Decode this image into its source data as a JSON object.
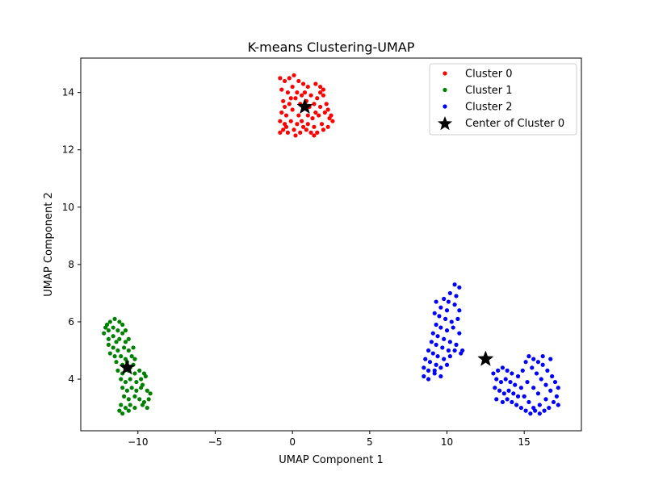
{
  "chart_data": {
    "type": "scatter",
    "title": "K-means Clustering-UMAP",
    "xlabel": "UMAP Component 1",
    "ylabel": "UMAP Component 2",
    "xlim": [
      -13.7,
      18.7
    ],
    "ylim": [
      2.2,
      15.2
    ],
    "xticks": [
      -10,
      -5,
      0,
      5,
      10,
      15
    ],
    "yticks": [
      4,
      6,
      8,
      10,
      12,
      14
    ],
    "grid": false,
    "legend_position": "top-right",
    "legend": [
      {
        "label": "Cluster 0",
        "color": "#ff0000",
        "marker": "point"
      },
      {
        "label": "Cluster 1",
        "color": "#008000",
        "marker": "point"
      },
      {
        "label": "Cluster 2",
        "color": "#0000ff",
        "marker": "point"
      },
      {
        "label": "Center of Cluster 0",
        "color": "#000000",
        "marker": "star"
      }
    ],
    "series": [
      {
        "name": "Cluster 0",
        "color": "#ff0000",
        "points": [
          [
            -0.8,
            14.5
          ],
          [
            -0.5,
            14.4
          ],
          [
            -0.2,
            14.5
          ],
          [
            0.1,
            14.6
          ],
          [
            0.4,
            14.4
          ],
          [
            0.7,
            14.3
          ],
          [
            1.0,
            14.2
          ],
          [
            1.5,
            14.3
          ],
          [
            1.8,
            14.2
          ],
          [
            2.0,
            14.1
          ],
          [
            -0.7,
            14.1
          ],
          [
            -0.3,
            14.0
          ],
          [
            0.0,
            14.2
          ],
          [
            0.3,
            14.0
          ],
          [
            0.6,
            13.9
          ],
          [
            1.2,
            13.9
          ],
          [
            1.6,
            13.8
          ],
          [
            2.0,
            13.9
          ],
          [
            -0.6,
            13.7
          ],
          [
            -0.2,
            13.6
          ],
          [
            0.2,
            13.8
          ],
          [
            0.5,
            13.6
          ],
          [
            1.1,
            13.5
          ],
          [
            1.4,
            13.6
          ],
          [
            1.8,
            13.5
          ],
          [
            2.2,
            13.6
          ],
          [
            -0.7,
            13.3
          ],
          [
            -0.4,
            13.2
          ],
          [
            0.0,
            13.4
          ],
          [
            0.4,
            13.2
          ],
          [
            1.0,
            13.2
          ],
          [
            1.3,
            13.1
          ],
          [
            1.7,
            13.2
          ],
          [
            2.1,
            13.3
          ],
          [
            2.4,
            13.1
          ],
          [
            2.6,
            13.0
          ],
          [
            -0.8,
            13.0
          ],
          [
            -0.5,
            12.9
          ],
          [
            -0.1,
            13.0
          ],
          [
            0.3,
            12.9
          ],
          [
            0.7,
            12.8
          ],
          [
            1.0,
            12.9
          ],
          [
            1.4,
            12.8
          ],
          [
            1.9,
            12.9
          ],
          [
            2.3,
            12.8
          ],
          [
            -0.6,
            12.7
          ],
          [
            -0.3,
            12.6
          ],
          [
            0.1,
            12.7
          ],
          [
            0.5,
            12.6
          ],
          [
            0.9,
            12.7
          ],
          [
            1.2,
            12.6
          ],
          [
            1.6,
            12.6
          ],
          [
            2.0,
            12.7
          ],
          [
            -0.4,
            12.8
          ],
          [
            0.6,
            13.0
          ],
          [
            1.5,
            13.3
          ],
          [
            0.8,
            14.0
          ],
          [
            -0.1,
            13.8
          ],
          [
            2.3,
            13.4
          ],
          [
            -0.8,
            12.6
          ],
          [
            1.4,
            12.5
          ],
          [
            0.2,
            12.5
          ],
          [
            1.8,
            14.0
          ],
          [
            0.9,
            13.7
          ],
          [
            -0.5,
            13.5
          ],
          [
            2.5,
            13.2
          ]
        ]
      },
      {
        "name": "Cluster 1",
        "color": "#008000",
        "points": [
          [
            -11.8,
            6.0
          ],
          [
            -11.5,
            6.1
          ],
          [
            -11.2,
            6.0
          ],
          [
            -11.0,
            5.9
          ],
          [
            -12.1,
            5.8
          ],
          [
            -11.9,
            5.7
          ],
          [
            -11.6,
            5.8
          ],
          [
            -11.3,
            5.7
          ],
          [
            -11.0,
            5.6
          ],
          [
            -10.8,
            5.7
          ],
          [
            -12.2,
            5.6
          ],
          [
            -11.9,
            5.4
          ],
          [
            -11.6,
            5.5
          ],
          [
            -11.2,
            5.4
          ],
          [
            -10.8,
            5.3
          ],
          [
            -10.6,
            5.4
          ],
          [
            -11.9,
            5.2
          ],
          [
            -11.6,
            5.1
          ],
          [
            -11.3,
            5.0
          ],
          [
            -10.9,
            5.1
          ],
          [
            -10.6,
            5.0
          ],
          [
            -10.3,
            5.1
          ],
          [
            -11.8,
            4.9
          ],
          [
            -11.5,
            4.8
          ],
          [
            -11.1,
            4.8
          ],
          [
            -10.8,
            4.7
          ],
          [
            -10.4,
            4.8
          ],
          [
            -10.2,
            4.7
          ],
          [
            -11.4,
            4.6
          ],
          [
            -11.0,
            4.5
          ],
          [
            -10.7,
            4.6
          ],
          [
            -10.3,
            4.5
          ],
          [
            -11.3,
            4.3
          ],
          [
            -11.0,
            4.2
          ],
          [
            -10.6,
            4.3
          ],
          [
            -10.2,
            4.2
          ],
          [
            -9.9,
            4.3
          ],
          [
            -9.6,
            4.2
          ],
          [
            -11.1,
            4.0
          ],
          [
            -10.8,
            3.9
          ],
          [
            -10.5,
            4.0
          ],
          [
            -10.1,
            3.9
          ],
          [
            -9.8,
            4.0
          ],
          [
            -9.5,
            4.1
          ],
          [
            -11.0,
            3.7
          ],
          [
            -10.7,
            3.6
          ],
          [
            -10.4,
            3.7
          ],
          [
            -10.1,
            3.6
          ],
          [
            -9.8,
            3.7
          ],
          [
            -9.4,
            3.6
          ],
          [
            -9.2,
            3.5
          ],
          [
            -10.9,
            3.4
          ],
          [
            -10.6,
            3.3
          ],
          [
            -10.2,
            3.4
          ],
          [
            -9.9,
            3.3
          ],
          [
            -9.6,
            3.2
          ],
          [
            -9.3,
            3.3
          ],
          [
            -11.1,
            3.1
          ],
          [
            -10.8,
            3.0
          ],
          [
            -10.5,
            3.1
          ],
          [
            -10.2,
            3.0
          ],
          [
            -9.7,
            3.1
          ],
          [
            -9.4,
            3.0
          ],
          [
            -11.2,
            2.9
          ],
          [
            -11.0,
            2.8
          ],
          [
            -10.6,
            2.9
          ],
          [
            -12.0,
            5.9
          ],
          [
            -11.4,
            5.3
          ],
          [
            -10.5,
            4.4
          ],
          [
            -9.7,
            3.8
          ]
        ]
      },
      {
        "name": "Cluster 2",
        "color": "#0000ff",
        "points": [
          [
            10.5,
            7.3
          ],
          [
            10.8,
            7.2
          ],
          [
            10.2,
            7.0
          ],
          [
            10.6,
            6.9
          ],
          [
            9.8,
            6.8
          ],
          [
            10.1,
            6.7
          ],
          [
            10.5,
            6.6
          ],
          [
            9.3,
            6.7
          ],
          [
            9.6,
            6.5
          ],
          [
            10.0,
            6.4
          ],
          [
            10.8,
            6.4
          ],
          [
            9.2,
            6.3
          ],
          [
            9.5,
            6.2
          ],
          [
            9.9,
            6.1
          ],
          [
            10.3,
            6.0
          ],
          [
            10.7,
            6.1
          ],
          [
            9.3,
            5.9
          ],
          [
            9.6,
            5.8
          ],
          [
            10.0,
            5.7
          ],
          [
            10.4,
            5.8
          ],
          [
            10.8,
            5.6
          ],
          [
            9.1,
            5.6
          ],
          [
            9.4,
            5.5
          ],
          [
            9.8,
            5.4
          ],
          [
            10.2,
            5.3
          ],
          [
            10.6,
            5.2
          ],
          [
            9.0,
            5.3
          ],
          [
            9.3,
            5.2
          ],
          [
            9.7,
            5.1
          ],
          [
            10.1,
            5.0
          ],
          [
            10.5,
            5.0
          ],
          [
            10.9,
            4.9
          ],
          [
            8.8,
            5.0
          ],
          [
            9.1,
            4.9
          ],
          [
            9.4,
            4.8
          ],
          [
            9.8,
            4.7
          ],
          [
            10.2,
            4.8
          ],
          [
            8.6,
            4.7
          ],
          [
            8.9,
            4.6
          ],
          [
            9.3,
            4.5
          ],
          [
            9.6,
            4.4
          ],
          [
            10.0,
            4.5
          ],
          [
            8.5,
            4.4
          ],
          [
            8.8,
            4.3
          ],
          [
            9.2,
            4.2
          ],
          [
            9.6,
            4.1
          ],
          [
            8.5,
            4.1
          ],
          [
            8.8,
            4.0
          ],
          [
            9.2,
            4.3
          ],
          [
            11.0,
            5.0
          ],
          [
            13.3,
            4.3
          ],
          [
            13.6,
            4.4
          ],
          [
            13.9,
            4.3
          ],
          [
            14.2,
            4.2
          ],
          [
            13.2,
            4.0
          ],
          [
            13.5,
            3.9
          ],
          [
            13.8,
            4.0
          ],
          [
            14.1,
            3.9
          ],
          [
            14.4,
            3.8
          ],
          [
            13.1,
            3.7
          ],
          [
            13.4,
            3.6
          ],
          [
            13.7,
            3.5
          ],
          [
            14.0,
            3.6
          ],
          [
            14.3,
            3.5
          ],
          [
            14.6,
            3.4
          ],
          [
            13.2,
            3.3
          ],
          [
            13.6,
            3.2
          ],
          [
            13.9,
            3.3
          ],
          [
            14.2,
            3.2
          ],
          [
            14.5,
            3.1
          ],
          [
            14.8,
            3.0
          ],
          [
            15.1,
            2.9
          ],
          [
            15.4,
            2.8
          ],
          [
            15.7,
            2.9
          ],
          [
            16.0,
            2.8
          ],
          [
            16.3,
            2.9
          ],
          [
            16.6,
            3.0
          ],
          [
            16.9,
            3.2
          ],
          [
            17.1,
            3.4
          ],
          [
            17.2,
            3.7
          ],
          [
            17.0,
            3.9
          ],
          [
            16.8,
            4.1
          ],
          [
            16.5,
            4.3
          ],
          [
            16.2,
            4.5
          ],
          [
            15.9,
            4.6
          ],
          [
            15.6,
            4.7
          ],
          [
            15.3,
            4.8
          ],
          [
            15.1,
            4.6
          ],
          [
            15.5,
            4.4
          ],
          [
            15.8,
            4.2
          ],
          [
            16.1,
            4.0
          ],
          [
            16.4,
            3.8
          ],
          [
            16.7,
            3.6
          ],
          [
            16.4,
            3.3
          ],
          [
            16.0,
            3.1
          ],
          [
            15.6,
            3.0
          ],
          [
            15.3,
            3.2
          ],
          [
            15.0,
            3.4
          ],
          [
            14.8,
            3.7
          ],
          [
            15.2,
            3.9
          ],
          [
            15.6,
            3.7
          ],
          [
            15.9,
            3.5
          ],
          [
            14.6,
            4.1
          ],
          [
            14.9,
            4.3
          ],
          [
            16.2,
            4.8
          ],
          [
            16.7,
            4.7
          ],
          [
            13.0,
            4.2
          ],
          [
            17.2,
            3.1
          ]
        ]
      }
    ],
    "centers": [
      {
        "label": "Center of Cluster 0",
        "color": "#000000",
        "points": [
          [
            0.8,
            13.5
          ],
          [
            -10.7,
            4.4
          ],
          [
            12.5,
            4.7
          ]
        ]
      }
    ]
  }
}
